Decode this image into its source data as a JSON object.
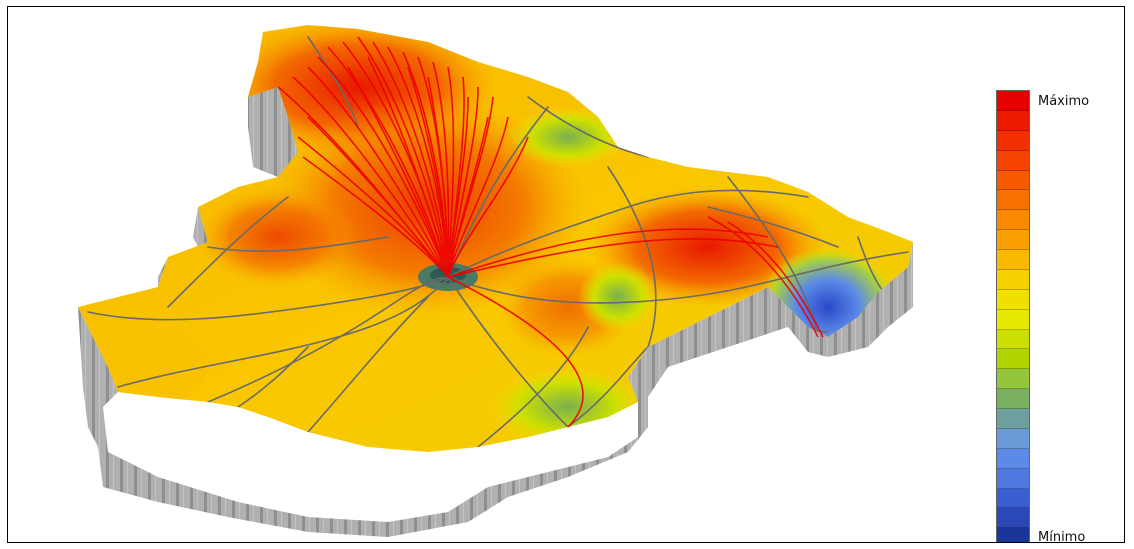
{
  "legend": {
    "max_label": "Máximo",
    "min_label": "Mínimo",
    "colors": [
      "#e60000",
      "#ee1a00",
      "#f22f00",
      "#f44400",
      "#f65a00",
      "#f87000",
      "#f98a00",
      "#faa000",
      "#fbb800",
      "#f7d000",
      "#f0e000",
      "#e6e800",
      "#cce000",
      "#b0d400",
      "#93c63a",
      "#7ab060",
      "#6fa0a0",
      "#6a9ad8",
      "#5b8ae8",
      "#4f78e0",
      "#3a5fd0",
      "#2a48b8",
      "#1a3598"
    ]
  },
  "map": {
    "wall_color": "#a8a8a8",
    "route_color": "#ee0000",
    "road_color": "#6a6a6a"
  }
}
